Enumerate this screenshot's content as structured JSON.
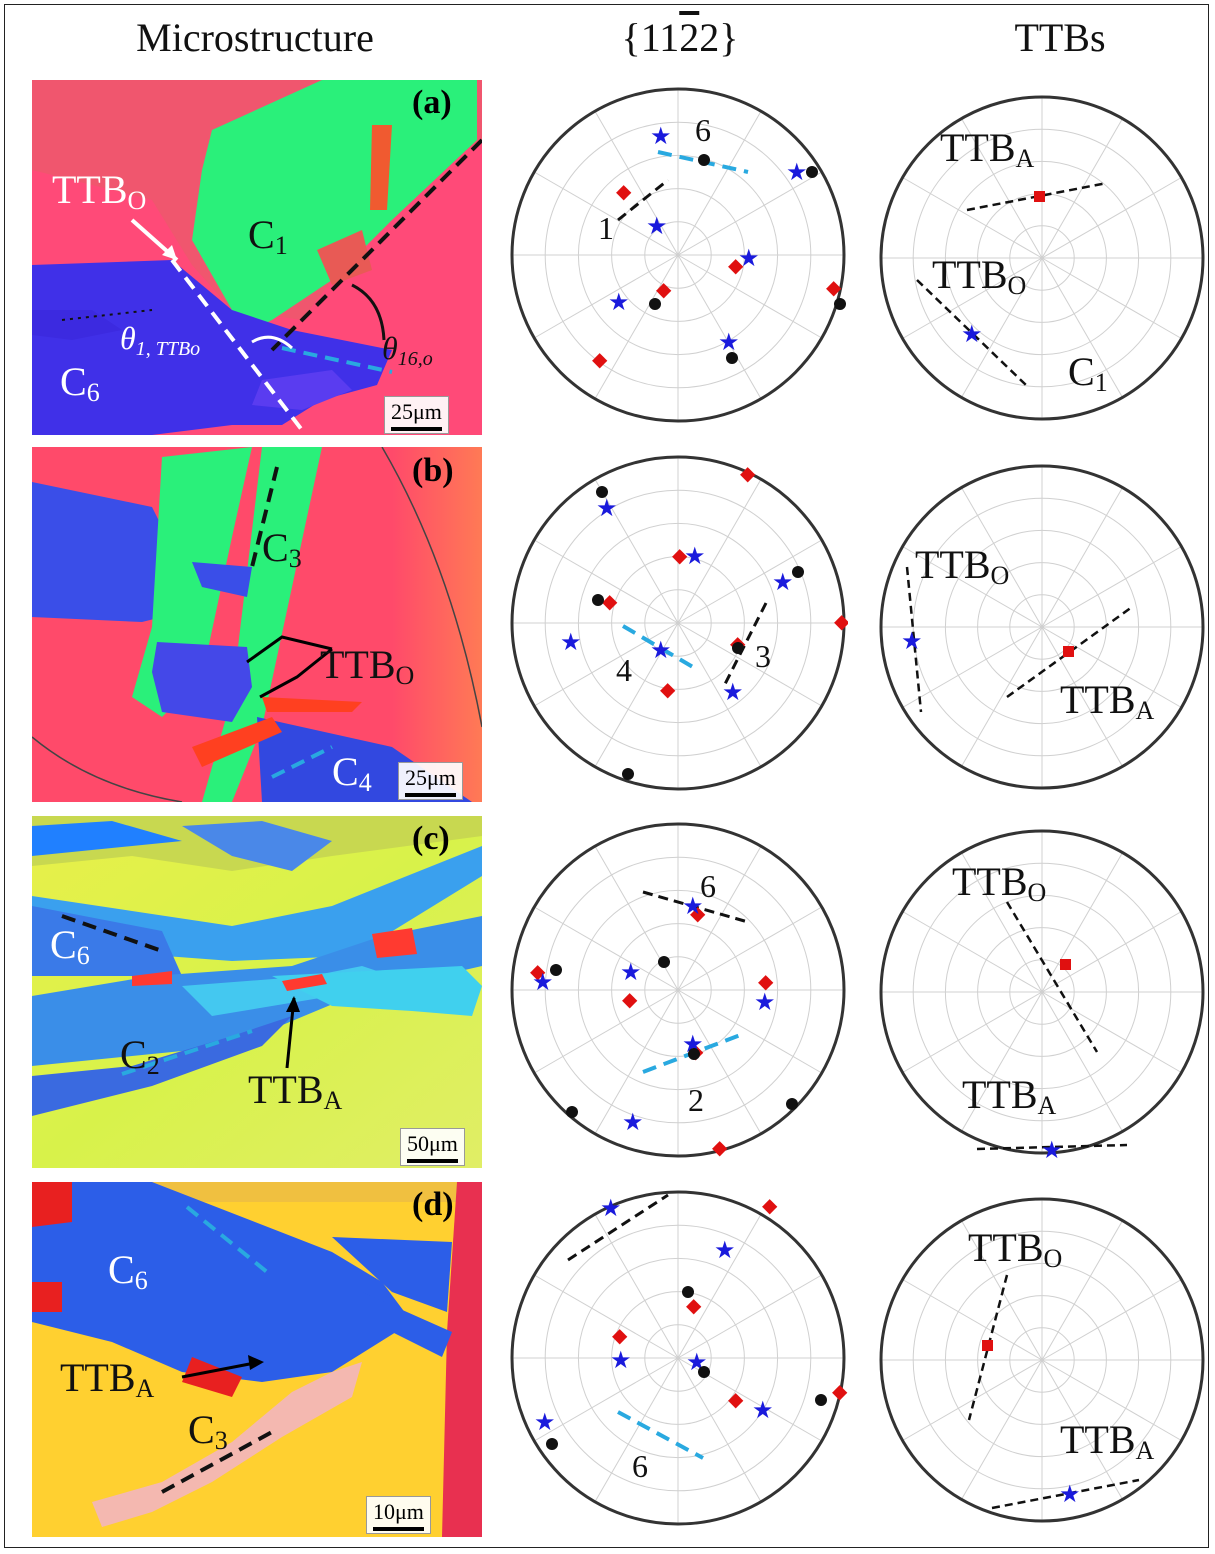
{
  "columns": {
    "microstructure": "Microstructure",
    "pole": "{11̄′}",
    "pole_parts": {
      "a": "{11",
      "bar": "2",
      "b": "2}"
    },
    "ttbs": "TTBs"
  },
  "panels": [
    {
      "letter": "(a)",
      "scale": "25μm",
      "labels": {
        "ttbo": "TTB",
        "ttbo_sub": "O",
        "c1": "C",
        "c1_sub": "1",
        "c6": "C",
        "c6_sub": "6",
        "theta1": "θ",
        "theta1_sub": "1, TTBo",
        "theta16": "θ",
        "theta16_sub": "16,o"
      },
      "pole_nums": [
        "6",
        "1"
      ],
      "ttb_labels": {
        "a": "TTB",
        "a_sub": "A",
        "o": "TTB",
        "o_sub": "O",
        "c": "C",
        "c_sub": "1"
      }
    },
    {
      "letter": "(b)",
      "scale": "25μm",
      "labels": {
        "c3": "C",
        "c3_sub": "3",
        "ttbo": "TTB",
        "ttbo_sub": "O",
        "c4": "C",
        "c4_sub": "4"
      },
      "pole_nums": [
        "4",
        "3"
      ],
      "ttb_labels": {
        "o": "TTB",
        "o_sub": "O",
        "a": "TTB",
        "a_sub": "A"
      }
    },
    {
      "letter": "(c)",
      "scale": "50μm",
      "labels": {
        "c6": "C",
        "c6_sub": "6",
        "c2": "C",
        "c2_sub": "2",
        "ttba": "TTB",
        "ttba_sub": "A"
      },
      "pole_nums": [
        "6",
        "2"
      ],
      "ttb_labels": {
        "o": "TTB",
        "o_sub": "O",
        "a": "TTB",
        "a_sub": "A"
      }
    },
    {
      "letter": "(d)",
      "scale": "10μm",
      "labels": {
        "c6": "C",
        "c6_sub": "6",
        "ttba": "TTB",
        "ttba_sub": "A",
        "c3": "C",
        "c3_sub": "3"
      },
      "pole_nums": [
        "6"
      ],
      "ttb_labels": {
        "o": "TTB",
        "o_sub": "O",
        "a": "TTB",
        "a_sub": "A"
      }
    }
  ],
  "colors": {
    "diamond": "#e01010",
    "star": "#1a1adc",
    "dot": "#111111",
    "cyan": "#29a9e0",
    "square": "#e01010"
  },
  "icon_names": [
    "diamond-marker",
    "star-marker",
    "dot-marker",
    "square-marker"
  ]
}
